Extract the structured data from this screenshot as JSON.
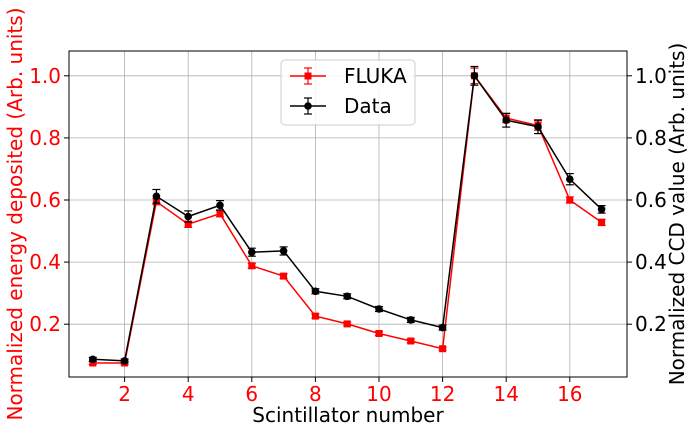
{
  "chart_data": {
    "type": "line",
    "xlabel": "Scintillator number",
    "ylabel_left": "Normalized energy deposited (Arb. units)",
    "ylabel_right": "Normalized CCD value (Arb. units)",
    "xlim": [
      0.25,
      17.8
    ],
    "ylim": [
      0.03,
      1.08
    ],
    "x_ticks": [
      2,
      4,
      6,
      8,
      10,
      12,
      14,
      16
    ],
    "y_ticks": [
      0.2,
      0.4,
      0.6,
      0.8,
      1.0
    ],
    "y_tick_labels": [
      "0.2",
      "0.4",
      "0.6",
      "0.8",
      "1.0"
    ],
    "grid": true,
    "legend_position": "top-center",
    "left_axis_color": "#ff0000",
    "right_axis_color": "#000000",
    "series": [
      {
        "name": "FLUKA",
        "color": "#ff0000",
        "marker": "square",
        "x": [
          1,
          2,
          3,
          4,
          5,
          6,
          7,
          8,
          9,
          10,
          11,
          12,
          13,
          14,
          15,
          16,
          17
        ],
        "values": [
          0.075,
          0.075,
          0.595,
          0.522,
          0.556,
          0.388,
          0.355,
          0.226,
          0.201,
          0.17,
          0.146,
          0.121,
          1.0,
          0.864,
          0.84,
          0.6,
          0.528
        ],
        "errors": [
          0.005,
          0.005,
          0.01,
          0.01,
          0.01,
          0.008,
          0.008,
          0.007,
          0.006,
          0.006,
          0.006,
          0.005,
          0.025,
          0.015,
          0.015,
          0.01,
          0.01
        ]
      },
      {
        "name": "Data",
        "color": "#000000",
        "marker": "circle",
        "x": [
          1,
          2,
          3,
          4,
          5,
          6,
          7,
          8,
          9,
          10,
          11,
          12,
          13,
          14,
          15,
          16,
          17
        ],
        "values": [
          0.087,
          0.082,
          0.612,
          0.547,
          0.583,
          0.432,
          0.436,
          0.306,
          0.29,
          0.249,
          0.214,
          0.189,
          1.0,
          0.857,
          0.836,
          0.667,
          0.57
        ],
        "errors": [
          0.006,
          0.006,
          0.022,
          0.018,
          0.015,
          0.013,
          0.013,
          0.008,
          0.008,
          0.008,
          0.008,
          0.008,
          0.03,
          0.022,
          0.022,
          0.018,
          0.012
        ]
      }
    ]
  }
}
